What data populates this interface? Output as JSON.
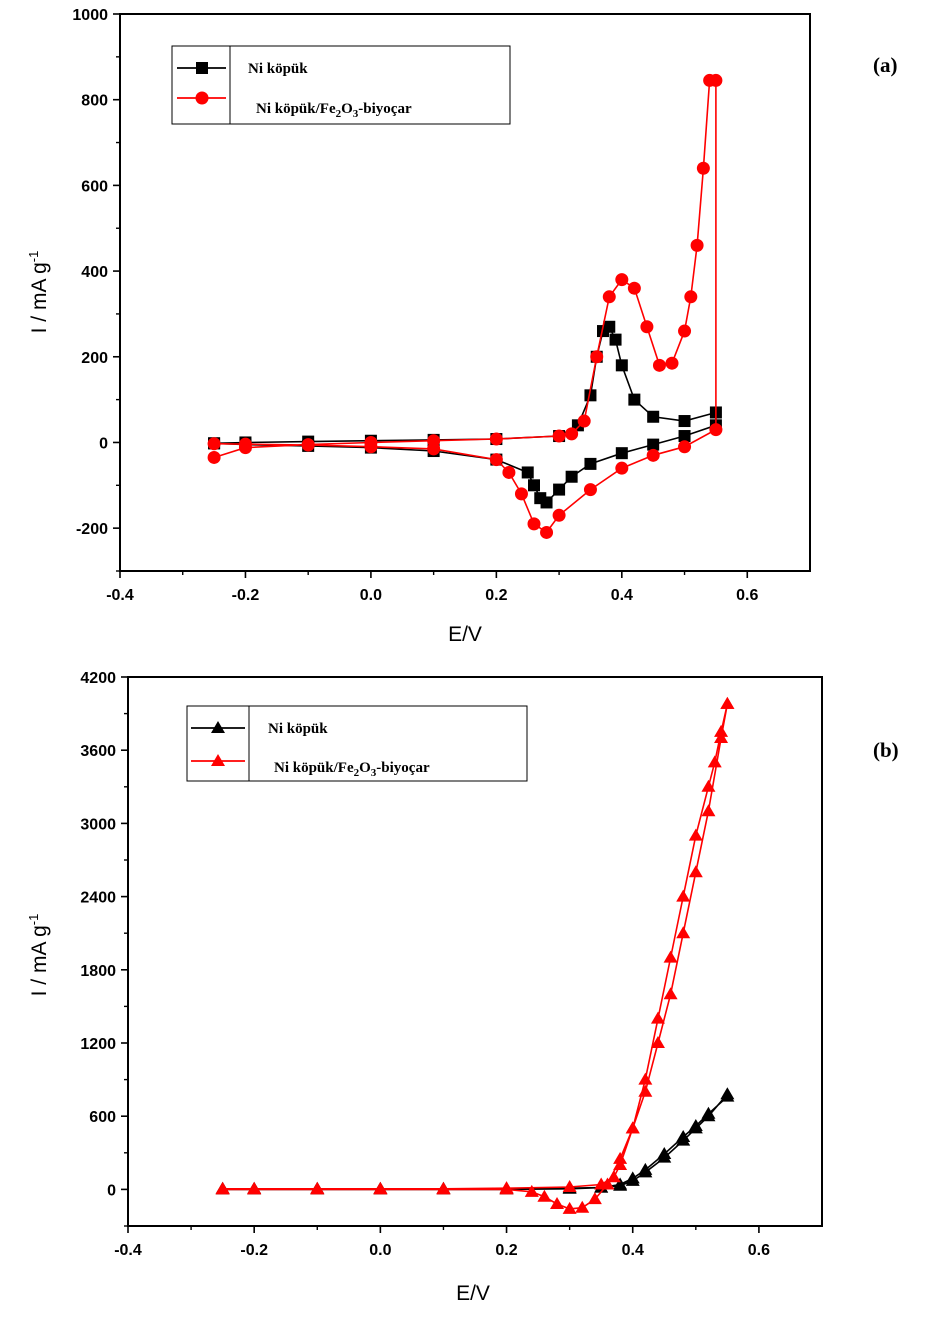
{
  "chart_data": [
    {
      "type": "scatter",
      "panel_label": "(a)",
      "xlabel": "E/V",
      "ylabel": "I / mA g",
      "ylabel_sup": "-1",
      "xlim": [
        -0.4,
        0.7
      ],
      "ylim": [
        -300,
        1000
      ],
      "xticks": [
        -0.4,
        -0.2,
        0.0,
        0.2,
        0.4,
        0.6
      ],
      "xtick_labels": [
        "-0.4",
        "-0.2",
        "0.0",
        "0.2",
        "0.4",
        "0.6"
      ],
      "yticks": [
        -200,
        0,
        200,
        400,
        600,
        800,
        1000
      ],
      "ytick_labels": [
        "-200",
        "0",
        "200",
        "400",
        "600",
        "800",
        "1000"
      ],
      "legend_position": "top-left",
      "series": [
        {
          "name": "Ni köpük",
          "color": "#000000",
          "marker": "square",
          "x": [
            -0.25,
            -0.2,
            -0.1,
            0.0,
            0.1,
            0.2,
            0.3,
            0.33,
            0.35,
            0.36,
            0.37,
            0.38,
            0.39,
            0.4,
            0.42,
            0.45,
            0.5,
            0.55,
            0.55,
            0.5,
            0.45,
            0.4,
            0.35,
            0.32,
            0.3,
            0.28,
            0.27,
            0.26,
            0.25,
            0.2,
            0.1,
            0.0,
            -0.1,
            -0.2,
            -0.25
          ],
          "y": [
            -2,
            0,
            2,
            4,
            6,
            8,
            15,
            40,
            110,
            200,
            260,
            270,
            240,
            180,
            100,
            60,
            50,
            70,
            40,
            15,
            -5,
            -25,
            -50,
            -80,
            -110,
            -140,
            -130,
            -100,
            -70,
            -40,
            -20,
            -12,
            -8,
            -5,
            -2
          ]
        },
        {
          "name": "Ni köpük/Fe2O3-biyoçar",
          "name_parts": [
            "Ni köpük/Fe",
            "2",
            "O",
            "3",
            "-biyoçar"
          ],
          "color": "#ff0000",
          "marker": "circle",
          "x": [
            -0.25,
            -0.2,
            -0.1,
            0.0,
            0.1,
            0.2,
            0.3,
            0.32,
            0.34,
            0.36,
            0.38,
            0.4,
            0.42,
            0.44,
            0.46,
            0.48,
            0.5,
            0.51,
            0.52,
            0.53,
            0.54,
            0.55,
            0.55,
            0.5,
            0.45,
            0.4,
            0.35,
            0.3,
            0.28,
            0.26,
            0.24,
            0.22,
            0.2,
            0.1,
            0.0,
            -0.1,
            -0.2,
            -0.25
          ],
          "y": [
            -35,
            -12,
            -5,
            0,
            4,
            8,
            15,
            20,
            50,
            200,
            340,
            380,
            360,
            270,
            180,
            185,
            260,
            340,
            460,
            640,
            845,
            845,
            30,
            -10,
            -30,
            -60,
            -110,
            -170,
            -210,
            -190,
            -120,
            -70,
            -40,
            -15,
            -10,
            -6,
            -4,
            -3
          ]
        }
      ]
    },
    {
      "type": "scatter",
      "panel_label": "(b)",
      "xlabel": "E/V",
      "ylabel": "I / mA g",
      "ylabel_sup": "-1",
      "xlim": [
        -0.4,
        0.7
      ],
      "ylim": [
        -300,
        4200
      ],
      "xticks": [
        -0.4,
        -0.2,
        0.0,
        0.2,
        0.4,
        0.6
      ],
      "xtick_labels": [
        "-0.4",
        "-0.2",
        "0.0",
        "0.2",
        "0.4",
        "0.6"
      ],
      "yticks": [
        0,
        600,
        1200,
        1800,
        2400,
        3000,
        3600,
        4200
      ],
      "ytick_labels": [
        "0",
        "600",
        "1200",
        "1800",
        "2400",
        "3000",
        "3600",
        "4200"
      ],
      "legend_position": "top-left",
      "series": [
        {
          "name": "Ni köpük",
          "color": "#000000",
          "marker": "triangle",
          "x": [
            -0.25,
            -0.2,
            -0.1,
            0.0,
            0.1,
            0.2,
            0.3,
            0.35,
            0.38,
            0.4,
            0.42,
            0.45,
            0.48,
            0.5,
            0.52,
            0.55,
            0.55,
            0.52,
            0.5,
            0.48,
            0.45,
            0.42,
            0.4,
            0.38,
            0.35,
            0.3,
            0.2,
            0.1,
            0.0,
            -0.1,
            -0.2,
            -0.25
          ],
          "y": [
            5,
            5,
            5,
            5,
            5,
            5,
            10,
            15,
            30,
            70,
            140,
            260,
            400,
            500,
            600,
            780,
            760,
            620,
            520,
            430,
            290,
            160,
            90,
            40,
            15,
            5,
            0,
            0,
            0,
            0,
            0,
            0
          ]
        },
        {
          "name": "Ni köpük/Fe2O3-biyoçar",
          "name_parts": [
            "Ni köpük/Fe",
            "2",
            "O",
            "3",
            "-biyoçar"
          ],
          "color": "#ff0000",
          "marker": "triangle",
          "x": [
            -0.25,
            -0.2,
            -0.1,
            0.0,
            0.1,
            0.2,
            0.3,
            0.35,
            0.37,
            0.38,
            0.4,
            0.42,
            0.44,
            0.46,
            0.48,
            0.5,
            0.52,
            0.53,
            0.54,
            0.55,
            0.55,
            0.54,
            0.52,
            0.5,
            0.48,
            0.46,
            0.44,
            0.42,
            0.4,
            0.38,
            0.36,
            0.34,
            0.32,
            0.3,
            0.28,
            0.26,
            0.24,
            0.2,
            0.1,
            0.0,
            -0.1,
            -0.2,
            -0.25
          ],
          "y": [
            5,
            5,
            5,
            5,
            5,
            10,
            20,
            40,
            100,
            200,
            500,
            900,
            1400,
            1900,
            2400,
            2900,
            3300,
            3500,
            3750,
            3980,
            3980,
            3700,
            3100,
            2600,
            2100,
            1600,
            1200,
            800,
            500,
            250,
            40,
            -80,
            -150,
            -160,
            -120,
            -60,
            -20,
            0,
            0,
            0,
            0,
            0,
            0
          ]
        }
      ]
    }
  ]
}
